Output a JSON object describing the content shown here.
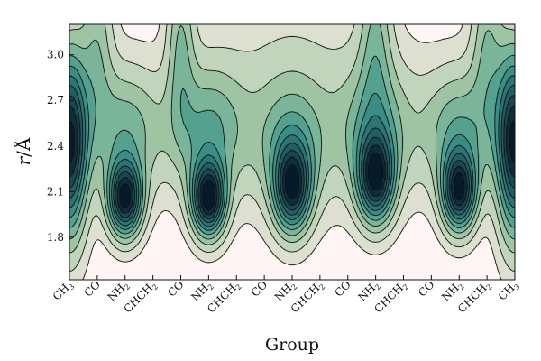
{
  "chart_data": {
    "type": "contour",
    "xlabel": "Group",
    "ylabel_main": "r",
    "ylabel_unit": "Å",
    "x_tick_labels": [
      {
        "base": "CH",
        "sub": "3"
      },
      {
        "base": "CO",
        "sub": ""
      },
      {
        "base": "NH",
        "sub": "2"
      },
      {
        "base": "CHCH",
        "sub": "2"
      },
      {
        "base": "CO",
        "sub": ""
      },
      {
        "base": "NH",
        "sub": "2"
      },
      {
        "base": "CHCH",
        "sub": "2"
      },
      {
        "base": "CO",
        "sub": ""
      },
      {
        "base": "NH",
        "sub": "2"
      },
      {
        "base": "CHCH",
        "sub": "2"
      },
      {
        "base": "CO",
        "sub": ""
      },
      {
        "base": "NH",
        "sub": "2"
      },
      {
        "base": "CHCH",
        "sub": "2"
      },
      {
        "base": "CO",
        "sub": ""
      },
      {
        "base": "NH",
        "sub": "2"
      },
      {
        "base": "CHCH",
        "sub": "2"
      },
      {
        "base": "CH",
        "sub": "3"
      }
    ],
    "y_ticks": [
      1.8,
      2.1,
      2.4,
      2.7,
      3.0
    ],
    "y_tick_labels": [
      "1.8",
      "2.1",
      "2.4",
      "2.7",
      "3.0"
    ],
    "xlim": [
      0,
      16
    ],
    "ylim": [
      1.52,
      3.2
    ],
    "grid": false,
    "colors": {
      "background": "#fff5f5",
      "levels": [
        "#fff5f5",
        "#dde0d0",
        "#c1d4bc",
        "#9fc4a4",
        "#7ab59a",
        "#54a18f",
        "#3a8c84",
        "#2c7574",
        "#235e62",
        "#1a4650",
        "#0f2c3b",
        "#071a2a"
      ],
      "line": "#111111"
    },
    "density_components": [
      {
        "x": 0,
        "r": 2.42,
        "amp": 1.05,
        "sx": 0.45,
        "sr": 0.42
      },
      {
        "x": 16,
        "r": 2.42,
        "amp": 1.05,
        "sx": 0.45,
        "sr": 0.42
      },
      {
        "x": 2,
        "r": 2.05,
        "amp": 1.0,
        "sx": 0.42,
        "sr": 0.17
      },
      {
        "x": 5,
        "r": 2.05,
        "amp": 1.02,
        "sx": 0.42,
        "sr": 0.17
      },
      {
        "x": 8,
        "r": 2.12,
        "amp": 0.85,
        "sx": 0.45,
        "sr": 0.2
      },
      {
        "x": 11,
        "r": 2.18,
        "amp": 0.88,
        "sx": 0.45,
        "sr": 0.2
      },
      {
        "x": 14,
        "r": 2.1,
        "amp": 0.95,
        "sx": 0.42,
        "sr": 0.18
      },
      {
        "x": 2,
        "r": 2.5,
        "amp": 0.4,
        "sx": 0.95,
        "sr": 0.3
      },
      {
        "x": 5,
        "r": 2.5,
        "amp": 0.42,
        "sx": 0.95,
        "sr": 0.3
      },
      {
        "x": 8,
        "r": 2.4,
        "amp": 0.38,
        "sx": 0.95,
        "sr": 0.32
      },
      {
        "x": 11,
        "r": 2.5,
        "amp": 0.4,
        "sx": 0.95,
        "sr": 0.32
      },
      {
        "x": 14,
        "r": 2.5,
        "amp": 0.42,
        "sx": 0.95,
        "sr": 0.3
      },
      {
        "x": 1,
        "r": 3.1,
        "amp": 0.28,
        "sx": 0.4,
        "sr": 0.4
      },
      {
        "x": 4,
        "r": 3.1,
        "amp": 0.3,
        "sx": 0.35,
        "sr": 0.4
      },
      {
        "x": 11,
        "r": 3.15,
        "amp": 0.28,
        "sx": 0.4,
        "sr": 0.4
      },
      {
        "x": 15,
        "r": 3.1,
        "amp": 0.3,
        "sx": 0.4,
        "sr": 0.4
      },
      {
        "x": 8,
        "r": 2.9,
        "amp": 0.12,
        "sx": 2.5,
        "sr": 0.5
      }
    ],
    "contour_levels": [
      0.06,
      0.14,
      0.24,
      0.34,
      0.44,
      0.54,
      0.64,
      0.74,
      0.84,
      0.94,
      1.04
    ]
  }
}
